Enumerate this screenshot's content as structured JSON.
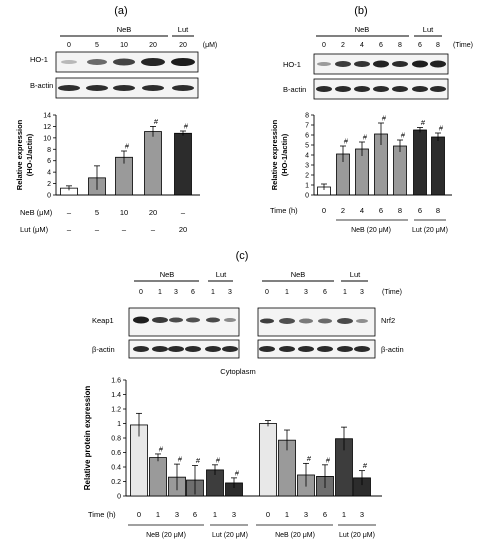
{
  "panel_labels": {
    "a": "(a)",
    "b": "(b)",
    "c": "(c)"
  },
  "blot_labels": {
    "ho1": "HO-1",
    "bactin": "Β-actin",
    "beta_actin": "β-actin",
    "keap1": "Keap1",
    "nrf2": "Nrf2"
  },
  "headers": {
    "neb": "NeB",
    "lut": "Lut",
    "time": "(Time)",
    "time_paren": "(Time)",
    "um": "(μM)"
  },
  "panel_a": {
    "conc_labels": [
      "0",
      "5",
      "10",
      "20",
      "20"
    ],
    "row_neb_label": "NeB (μM)",
    "row_lut_label": "Lut (μM)",
    "row_neb_values": [
      "–",
      "5",
      "10",
      "20",
      "–"
    ],
    "row_lut_values": [
      "–",
      "–",
      "–",
      "–",
      "20"
    ]
  },
  "panel_b": {
    "time_labels": [
      "0",
      "2",
      "4",
      "6",
      "8",
      "6",
      "8"
    ],
    "time_row_label": "Time (h)",
    "neb_group": "NeB (20 μM)",
    "lut_group": "Lut (20 μM)"
  },
  "panel_c": {
    "blot_time_labels": [
      "0",
      "1",
      "3",
      "6",
      "1",
      "3"
    ],
    "time_row_label": "Time (h)",
    "neb_group": "NeB (20 μM)",
    "lut_group": "Lut (20 μM)",
    "annotation": "Cytoplasm"
  },
  "colors": {
    "white": "#ffffff",
    "lightgray": "#e8e8e8",
    "gray": "#9a9a9a",
    "midgray": "#6e6e6e",
    "dark": "#3d3d3d",
    "darker": "#2c2c2c"
  },
  "chart_data": [
    {
      "id": "a",
      "type": "bar",
      "ylabel": "Relative expression\n(HO-1/actin)",
      "ylim": [
        0,
        14
      ],
      "yticks": [
        0,
        2,
        4,
        6,
        8,
        10,
        12,
        14
      ],
      "categories": [
        "0",
        "5",
        "10",
        "20",
        "Lut 20"
      ],
      "values": [
        1.2,
        3.0,
        6.6,
        11.1,
        10.8
      ],
      "errors": [
        0.4,
        2.1,
        1.1,
        0.9,
        0.4
      ],
      "significance": [
        "",
        "",
        "#",
        "#",
        "#"
      ],
      "fills": [
        "white",
        "gray",
        "gray",
        "gray",
        "darker"
      ]
    },
    {
      "id": "b",
      "type": "bar",
      "ylabel": "Relative expression\n(HO-1/actin)",
      "ylim": [
        0,
        8
      ],
      "yticks": [
        0,
        1,
        2,
        3,
        4,
        5,
        6,
        7,
        8
      ],
      "categories": [
        "0",
        "2",
        "4",
        "6",
        "8",
        "Lut 6",
        "Lut 8"
      ],
      "values": [
        0.8,
        4.1,
        4.6,
        6.1,
        4.9,
        6.5,
        5.8
      ],
      "errors": [
        0.3,
        0.8,
        0.7,
        1.1,
        0.6,
        0.25,
        0.4
      ],
      "significance": [
        "",
        "#",
        "#",
        "#",
        "#",
        "#",
        "#"
      ],
      "fills": [
        "white",
        "gray",
        "gray",
        "gray",
        "gray",
        "darker",
        "darker"
      ]
    },
    {
      "id": "c",
      "type": "bar",
      "ylabel": "Relative protein expression",
      "ylim": [
        0,
        1.6
      ],
      "yticks": [
        0,
        0.2,
        0.4,
        0.6,
        0.8,
        1.0,
        1.2,
        1.4,
        1.6
      ],
      "yticklabels": [
        "0",
        "0.2",
        "0.4",
        "0.6",
        "0.8",
        "1",
        "1.2",
        "1.4",
        "1.6"
      ],
      "series": [
        {
          "group": "left",
          "categories": [
            "0",
            "1",
            "3",
            "6",
            "1",
            "3"
          ],
          "values": [
            0.98,
            0.53,
            0.26,
            0.22,
            0.36,
            0.18
          ],
          "errors": [
            0.16,
            0.05,
            0.18,
            0.2,
            0.07,
            0.07
          ],
          "significance": [
            "",
            "#",
            "#",
            "#",
            "#",
            "#"
          ],
          "fills": [
            "lightgray",
            "gray",
            "gray",
            "midgray",
            "dark",
            "darker"
          ]
        },
        {
          "group": "right",
          "categories": [
            "0",
            "1",
            "3",
            "6",
            "1",
            "3"
          ],
          "values": [
            1.0,
            0.77,
            0.29,
            0.27,
            0.79,
            0.25
          ],
          "errors": [
            0.04,
            0.14,
            0.16,
            0.16,
            0.16,
            0.1
          ],
          "significance": [
            "",
            "",
            "#",
            "#",
            "",
            "#"
          ],
          "fills": [
            "lightgray",
            "gray",
            "gray",
            "midgray",
            "dark",
            "darker"
          ]
        }
      ]
    }
  ]
}
